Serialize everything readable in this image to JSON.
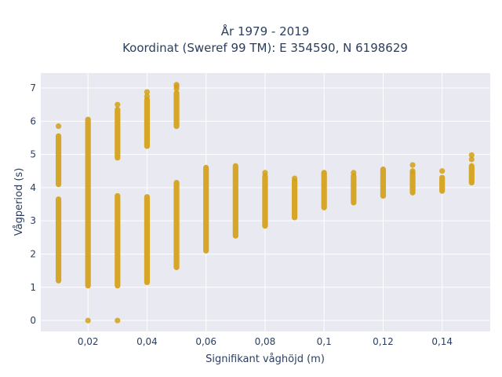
{
  "chart_data": {
    "type": "scatter",
    "title_line1": "År 1979 - 2019",
    "title_line2": "Koordinat (Sweref 99 TM): E 354590, N 6198629",
    "xlabel": "Signifikant våghöjd (m)",
    "ylabel": "Vågperiod (s)",
    "xlim": [
      0.004,
      0.1563
    ],
    "ylim": [
      -0.33,
      7.45
    ],
    "grid": true,
    "background": "#e9e9f1",
    "marker_color": "#d4a017",
    "xticks": [
      {
        "value": 0.02,
        "label": "0,02"
      },
      {
        "value": 0.04,
        "label": "0,04"
      },
      {
        "value": 0.06,
        "label": "0,06"
      },
      {
        "value": 0.08,
        "label": "0,08"
      },
      {
        "value": 0.1,
        "label": "0,1"
      },
      {
        "value": 0.12,
        "label": "0,12"
      },
      {
        "value": 0.14,
        "label": "0,14"
      }
    ],
    "yticks": [
      {
        "value": 0,
        "label": "0"
      },
      {
        "value": 1,
        "label": "1"
      },
      {
        "value": 2,
        "label": "2"
      },
      {
        "value": 3,
        "label": "3"
      },
      {
        "value": 4,
        "label": "4"
      },
      {
        "value": 5,
        "label": "5"
      },
      {
        "value": 6,
        "label": "6"
      },
      {
        "value": 7,
        "label": "7"
      }
    ],
    "ranges": [
      {
        "x": 0.01,
        "y_min": 1.2,
        "y_max": 3.65
      },
      {
        "x": 0.01,
        "y_min": 4.1,
        "y_max": 5.55
      },
      {
        "x": 0.02,
        "y_min": 1.05,
        "y_max": 6.05
      },
      {
        "x": 0.03,
        "y_min": 1.05,
        "y_max": 3.75
      },
      {
        "x": 0.03,
        "y_min": 4.9,
        "y_max": 6.35
      },
      {
        "x": 0.04,
        "y_min": 1.15,
        "y_max": 3.72
      },
      {
        "x": 0.04,
        "y_min": 5.25,
        "y_max": 6.65
      },
      {
        "x": 0.05,
        "y_min": 1.6,
        "y_max": 4.15
      },
      {
        "x": 0.05,
        "y_min": 5.85,
        "y_max": 6.85
      },
      {
        "x": 0.06,
        "y_min": 2.1,
        "y_max": 4.6
      },
      {
        "x": 0.07,
        "y_min": 2.55,
        "y_max": 4.65
      },
      {
        "x": 0.08,
        "y_min": 2.85,
        "y_max": 4.35
      },
      {
        "x": 0.09,
        "y_min": 3.1,
        "y_max": 4.2
      },
      {
        "x": 0.1,
        "y_min": 3.4,
        "y_max": 4.45
      },
      {
        "x": 0.11,
        "y_min": 3.55,
        "y_max": 4.35
      },
      {
        "x": 0.12,
        "y_min": 3.75,
        "y_max": 4.55
      },
      {
        "x": 0.13,
        "y_min": 3.85,
        "y_max": 4.45
      },
      {
        "x": 0.14,
        "y_min": 3.9,
        "y_max": 4.3
      },
      {
        "x": 0.15,
        "y_min": 4.15,
        "y_max": 4.65
      }
    ],
    "points": [
      {
        "x": 0.01,
        "y": 5.85
      },
      {
        "x": 0.02,
        "y": 0
      },
      {
        "x": 0.03,
        "y": 0
      },
      {
        "x": 0.03,
        "y": 6.5
      },
      {
        "x": 0.04,
        "y": 6.88
      },
      {
        "x": 0.04,
        "y": 6.75
      },
      {
        "x": 0.05,
        "y": 7.1
      },
      {
        "x": 0.05,
        "y": 7.05
      },
      {
        "x": 0.05,
        "y": 6.98
      },
      {
        "x": 0.08,
        "y": 4.45
      },
      {
        "x": 0.09,
        "y": 4.28
      },
      {
        "x": 0.11,
        "y": 4.45
      },
      {
        "x": 0.13,
        "y": 4.68
      },
      {
        "x": 0.13,
        "y": 4.5
      },
      {
        "x": 0.14,
        "y": 4.5
      },
      {
        "x": 0.15,
        "y": 4.98
      },
      {
        "x": 0.15,
        "y": 4.85
      }
    ]
  }
}
